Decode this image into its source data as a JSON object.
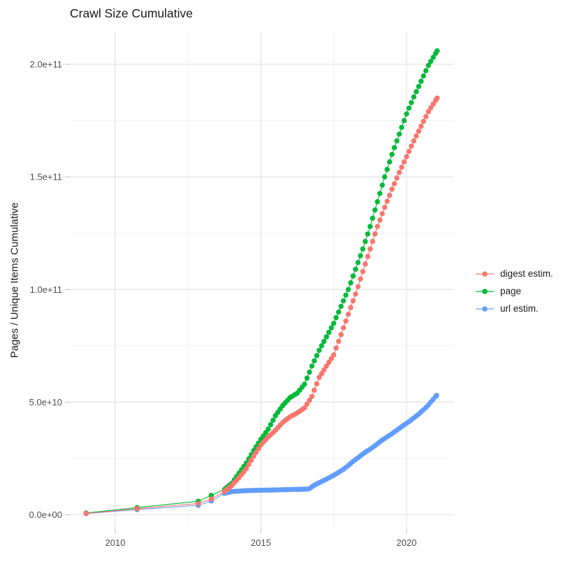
{
  "title": "Crawl Size Cumulative",
  "chart_data": {
    "type": "scatter",
    "title": "Crawl Size Cumulative",
    "xlabel": "",
    "ylabel": "Pages / Unique Items Cumulative",
    "y_unit": "items, values in billions (1e9)",
    "grid": true,
    "legend_position": "right",
    "x_ticks": [
      {
        "v": 2010,
        "label": "2010"
      },
      {
        "v": 2015,
        "label": "2015"
      },
      {
        "v": 2020,
        "label": "2020"
      }
    ],
    "x_minor": [
      2012.5,
      2017.5
    ],
    "x_range": [
      2008.45,
      2021.6
    ],
    "y_ticks": [
      {
        "v": 0,
        "label": "0.0e+00"
      },
      {
        "v": 50,
        "label": "5.0e+10"
      },
      {
        "v": 100,
        "label": "1.0e+11"
      },
      {
        "v": 150,
        "label": "1.5e+11"
      },
      {
        "v": 200,
        "label": "2.0e+11"
      }
    ],
    "y_minor": [
      25,
      75,
      125,
      175
    ],
    "y_range": [
      0,
      220
    ],
    "dots_per_year": 12,
    "series": [
      {
        "id": "digest",
        "name": "digest estim.",
        "color": "#F8766D",
        "points_sparse": [
          [
            2009,
            0.6
          ],
          [
            2010.75,
            2.7
          ],
          [
            2012.85,
            5.0
          ],
          [
            2013.3,
            7.0
          ]
        ],
        "trend": [
          [
            2013.75,
            10.3
          ],
          [
            2014,
            13
          ],
          [
            2014.25,
            16.5
          ],
          [
            2014.5,
            20.5
          ],
          [
            2014.75,
            26
          ],
          [
            2015,
            31
          ],
          [
            2015.25,
            34.5
          ],
          [
            2015.5,
            37.5
          ],
          [
            2015.75,
            41
          ],
          [
            2016,
            43.5
          ],
          [
            2016.25,
            45.2
          ],
          [
            2016.5,
            47.5
          ],
          [
            2016.75,
            52.5
          ],
          [
            2017,
            61
          ],
          [
            2017.25,
            66
          ],
          [
            2017.5,
            71
          ],
          [
            2017.75,
            80
          ],
          [
            2018,
            89
          ],
          [
            2018.25,
            98
          ],
          [
            2018.5,
            108
          ],
          [
            2018.75,
            118
          ],
          [
            2019,
            128
          ],
          [
            2019.25,
            136.5
          ],
          [
            2019.5,
            144.5
          ],
          [
            2019.75,
            152
          ],
          [
            2020,
            159
          ],
          [
            2020.25,
            166
          ],
          [
            2020.5,
            172.5
          ],
          [
            2020.75,
            179
          ],
          [
            2021.05,
            185
          ]
        ]
      },
      {
        "id": "page",
        "name": "page",
        "color": "#00BA38",
        "points_sparse": [
          [
            2009,
            0.8
          ],
          [
            2010.75,
            3.2
          ],
          [
            2012.85,
            6.0
          ],
          [
            2013.3,
            8.6
          ]
        ],
        "trend": [
          [
            2013.75,
            11.3
          ],
          [
            2014,
            14
          ],
          [
            2014.25,
            18.5
          ],
          [
            2014.5,
            23
          ],
          [
            2014.75,
            28.5
          ],
          [
            2015,
            33.5
          ],
          [
            2015.25,
            38
          ],
          [
            2015.5,
            44
          ],
          [
            2015.75,
            48.5
          ],
          [
            2016,
            52
          ],
          [
            2016.25,
            54
          ],
          [
            2016.5,
            58
          ],
          [
            2016.75,
            66
          ],
          [
            2017,
            73
          ],
          [
            2017.25,
            79
          ],
          [
            2017.5,
            85
          ],
          [
            2017.75,
            92.5
          ],
          [
            2018,
            100
          ],
          [
            2018.25,
            109
          ],
          [
            2018.5,
            118
          ],
          [
            2018.75,
            128
          ],
          [
            2019,
            139
          ],
          [
            2019.25,
            150
          ],
          [
            2019.5,
            160
          ],
          [
            2019.75,
            169
          ],
          [
            2020,
            178
          ],
          [
            2020.25,
            185.5
          ],
          [
            2020.5,
            192.5
          ],
          [
            2020.75,
            199.5
          ],
          [
            2021.05,
            206
          ]
        ]
      },
      {
        "id": "url",
        "name": "url estim.",
        "color": "#619CFF",
        "points_sparse": [
          [
            2009,
            0.5
          ],
          [
            2010.75,
            2.3
          ],
          [
            2012.85,
            4.2
          ],
          [
            2013.3,
            6.1
          ]
        ],
        "trend": [
          [
            2013.75,
            9.5
          ],
          [
            2014,
            10.3
          ],
          [
            2014.5,
            10.7
          ],
          [
            2015,
            10.9
          ],
          [
            2015.5,
            11.0
          ],
          [
            2016,
            11.2
          ],
          [
            2016.65,
            11.4
          ],
          [
            2016.8,
            12.9
          ],
          [
            2017,
            14.2
          ],
          [
            2017.25,
            15.8
          ],
          [
            2017.5,
            17.5
          ],
          [
            2017.85,
            20.3
          ],
          [
            2018.2,
            24
          ],
          [
            2018.5,
            27
          ],
          [
            2018.85,
            30
          ],
          [
            2019.15,
            33
          ],
          [
            2019.5,
            36
          ],
          [
            2019.8,
            38.8
          ],
          [
            2020.1,
            41.5
          ],
          [
            2020.4,
            44.5
          ],
          [
            2020.7,
            48
          ],
          [
            2021.03,
            53
          ]
        ]
      }
    ]
  },
  "style": {
    "grid_major_color": "#e2e2e2",
    "grid_minor_color": "#f0f0f0",
    "tick_color": "#c6c6c6",
    "tick_label_color": "#4d4d4d"
  }
}
